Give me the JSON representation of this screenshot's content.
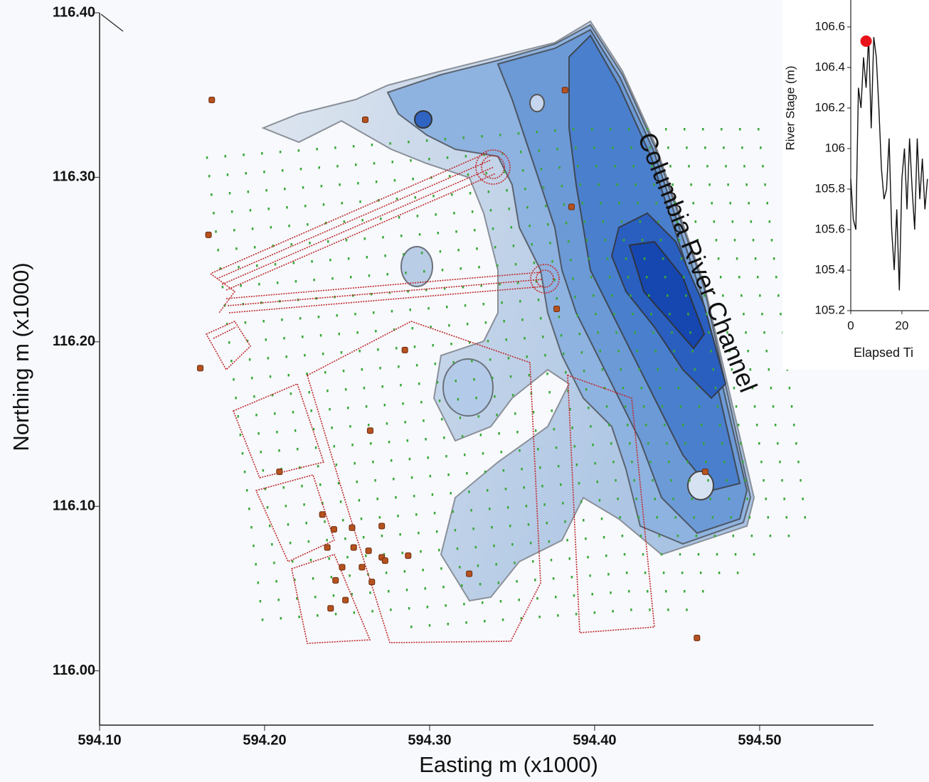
{
  "chart_data": [
    {
      "type": "scatter",
      "x_label": "Easting m (x1000)",
      "y_label": "Northing m (x1000)",
      "annotation": "Columbia River Channel",
      "xlim": [
        594.1,
        594.569
      ],
      "ylim": [
        115.967,
        116.4
      ],
      "xticks": [
        {
          "value": 594.1,
          "label": "594.10"
        },
        {
          "value": 594.2,
          "label": "594.20"
        },
        {
          "value": 594.3,
          "label": "594.30"
        },
        {
          "value": 594.4,
          "label": "594.40"
        },
        {
          "value": 594.5,
          "label": "594.50"
        }
      ],
      "yticks": [
        {
          "value": 116.0,
          "label": "116.00"
        },
        {
          "value": 116.1,
          "label": "116.10"
        },
        {
          "value": 116.2,
          "label": "116.20"
        },
        {
          "value": 116.3,
          "label": "116.30"
        },
        {
          "value": 116.4,
          "label": "116.40"
        }
      ],
      "series": [
        {
          "color": "#b5521f",
          "x": [
            594.168,
            594.261,
            594.382,
            594.166,
            594.386,
            594.377,
            594.285,
            594.161,
            594.264,
            594.209,
            594.467,
            594.324,
            594.462,
            594.235,
            594.242,
            594.253,
            594.271,
            594.238,
            594.254,
            594.263,
            594.271,
            594.287,
            594.247,
            594.259,
            594.243,
            594.265,
            594.249,
            594.24,
            594.273
          ],
          "y": [
            116.347,
            116.335,
            116.353,
            116.265,
            116.282,
            116.22,
            116.195,
            116.184,
            116.146,
            116.121,
            116.121,
            116.059,
            116.02,
            116.095,
            116.086,
            116.087,
            116.088,
            116.075,
            116.075,
            116.073,
            116.069,
            116.07,
            116.063,
            116.063,
            116.055,
            116.054,
            116.043,
            116.038,
            116.067
          ]
        }
      ]
    },
    {
      "type": "line",
      "x_label": "Elapsed Ti",
      "y_label": "River Stage (m)",
      "xlim": [
        0,
        30.6
      ],
      "ylim": [
        105.2,
        106.733
      ],
      "xticks": [
        0,
        20
      ],
      "yticks": [
        105.2,
        105.4,
        105.6,
        105.8,
        106,
        106.2,
        106.4,
        106.6
      ],
      "series": [
        {
          "color": "#111111",
          "x": [
            0,
            1,
            2,
            3,
            4,
            5,
            6,
            7,
            8,
            9,
            10,
            11,
            12,
            13,
            14,
            15,
            16,
            17,
            18,
            19,
            20,
            21,
            22,
            23,
            24,
            25,
            26,
            27,
            28,
            29,
            30
          ],
          "values": [
            105.85,
            105.65,
            105.6,
            106.3,
            106.2,
            106.45,
            106.3,
            106.55,
            106.1,
            106.55,
            106.45,
            106.2,
            105.9,
            105.75,
            105.8,
            106.05,
            105.6,
            105.4,
            105.7,
            105.3,
            105.85,
            106.0,
            105.7,
            106.05,
            105.8,
            105.6,
            106.05,
            105.75,
            105.95,
            105.7,
            105.85
          ]
        }
      ],
      "marker": {
        "x": 6,
        "y": 106.53,
        "color": "#e8121a"
      }
    }
  ]
}
